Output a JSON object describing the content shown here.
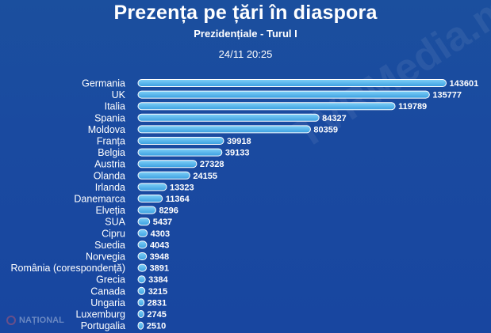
{
  "header": {
    "title": "Prezența pe țări în diaspora",
    "subtitle": "Prezidențiale - Turul I",
    "timestamp": "24/11 20:25"
  },
  "watermark": "TVRMedia.md",
  "logo": "NAȚIONAL",
  "colors": {
    "bar_fill": "#55b7ee",
    "bar_stroke": "#ffffff",
    "background": "#1a4aa0"
  },
  "chart_data": {
    "type": "bar",
    "orientation": "horizontal",
    "title": "Prezența pe țări în diaspora",
    "subtitle": "Prezidențiale - Turul I",
    "xlabel": "",
    "ylabel": "",
    "grid": false,
    "categories": [
      "Germania",
      "UK",
      "Italia",
      "Spania",
      "Moldova",
      "Franța",
      "Belgia",
      "Austria",
      "Olanda",
      "Irlanda",
      "Danemarca",
      "Elveția",
      "SUA",
      "Cipru",
      "Suedia",
      "Norvegia",
      "România (corespondență)",
      "Grecia",
      "Canada",
      "Ungaria",
      "Luxemburg",
      "Portugalia"
    ],
    "values": [
      143601,
      135777,
      119789,
      84327,
      80359,
      39918,
      39133,
      27328,
      24155,
      13323,
      11364,
      8296,
      5437,
      4303,
      4043,
      3948,
      3891,
      3384,
      3215,
      2831,
      2745,
      2510
    ],
    "xlim": [
      0,
      150000
    ]
  }
}
